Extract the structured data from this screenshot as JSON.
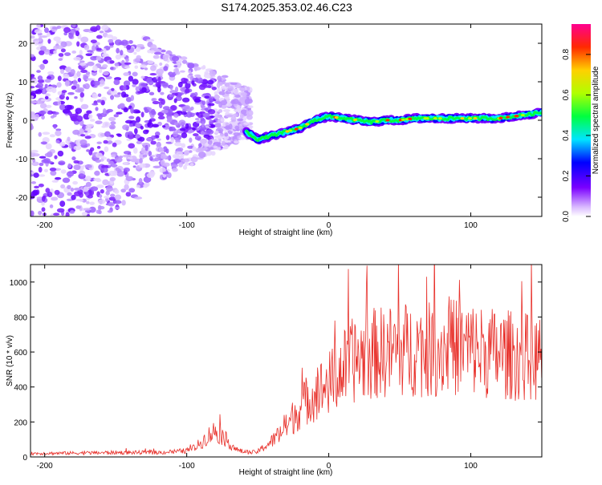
{
  "page": {
    "title": "S174.2025.353.02.46.C23"
  },
  "chart_data": [
    {
      "type": "heatmap",
      "xlabel": "Height of straight line (km)",
      "ylabel": "Frequency (Hz)",
      "xlim": [
        -210,
        150
      ],
      "ylim": [
        -25,
        25
      ],
      "xticks": [
        -200,
        -100,
        0,
        100
      ],
      "yticks": [
        -20,
        -10,
        0,
        10,
        20
      ],
      "ridge": {
        "x": [
          -58,
          -50,
          -40,
          -30,
          -20,
          -10,
          0,
          10,
          20,
          30,
          40,
          50,
          60,
          70,
          80,
          90,
          100,
          110,
          120,
          130,
          140,
          150
        ],
        "freq": [
          -3,
          -5,
          -4,
          -3,
          -2,
          0,
          1,
          0.5,
          0,
          -0.5,
          0,
          0,
          0.5,
          0.5,
          0.5,
          0.5,
          0.5,
          0.5,
          0.5,
          1,
          1.5,
          2
        ]
      },
      "colorbar": {
        "label": "Normalized spectral amplitude",
        "ticks": [
          "0.0",
          "0.2",
          "0.4",
          "0.6",
          "0.8"
        ],
        "range": [
          0,
          0.95
        ]
      }
    },
    {
      "type": "line",
      "xlabel": "Height of straight line (km)",
      "ylabel": "SNR (10 * v/v)",
      "xlim": [
        -210,
        150
      ],
      "ylim": [
        0,
        1100
      ],
      "xticks": [
        -200,
        -100,
        0,
        100
      ],
      "yticks": [
        0,
        200,
        400,
        600,
        800,
        1000
      ],
      "series": [
        {
          "name": "SNR",
          "color": "#e8302a",
          "envelope": {
            "x": [
              -210,
              -180,
              -150,
              -120,
              -100,
              -95,
              -90,
              -85,
              -80,
              -75,
              -70,
              -65,
              -60,
              -55,
              -50,
              -45,
              -40,
              -35,
              -30,
              -25,
              -20,
              -15,
              -10,
              -5,
              0,
              5,
              10,
              15,
              20,
              30,
              40,
              50,
              60,
              70,
              80,
              90,
              100,
              110,
              120,
              130,
              140,
              150
            ],
            "mean": [
              20,
              22,
              25,
              25,
              35,
              50,
              80,
              120,
              150,
              120,
              80,
              40,
              30,
              25,
              30,
              60,
              90,
              130,
              170,
              230,
              280,
              330,
              360,
              390,
              420,
              450,
              500,
              540,
              560,
              590,
              600,
              610,
              620,
              610,
              620,
              630,
              620,
              600,
              590,
              580,
              570,
              560
            ]
          }
        }
      ]
    }
  ]
}
